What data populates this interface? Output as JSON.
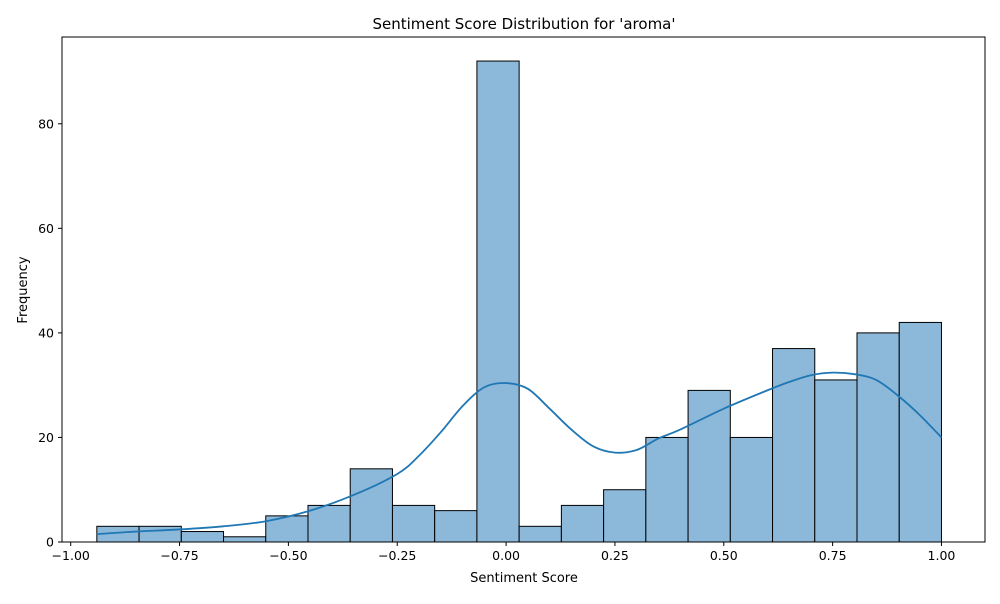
{
  "chart_data": {
    "type": "bar",
    "subtype": "histogram_with_kde",
    "title": "Sentiment Score Distribution for 'aroma'",
    "xlabel": "Sentiment Score",
    "ylabel": "Frequency",
    "xlim": [
      -1.02,
      1.1
    ],
    "ylim": [
      0,
      96.6
    ],
    "xticks": [
      -1.0,
      -0.75,
      -0.5,
      -0.25,
      0.0,
      0.25,
      0.5,
      0.75,
      1.0
    ],
    "xtick_labels": [
      "−1.00",
      "−0.75",
      "−0.50",
      "−0.25",
      "0.00",
      "0.25",
      "0.50",
      "0.75",
      "1.00"
    ],
    "yticks": [
      0,
      20,
      40,
      60,
      80
    ],
    "ytick_labels": [
      "0",
      "20",
      "40",
      "60",
      "80"
    ],
    "grid": false,
    "legend": "none",
    "bin_edges": [
      -0.94,
      -0.843,
      -0.746,
      -0.649,
      -0.552,
      -0.455,
      -0.358,
      -0.261,
      -0.164,
      -0.067,
      0.03,
      0.127,
      0.224,
      0.321,
      0.418,
      0.515,
      0.612,
      0.709,
      0.806,
      0.903,
      1.0
    ],
    "values": [
      3,
      3,
      2,
      1,
      5,
      7,
      14,
      7,
      6,
      92,
      3,
      7,
      10,
      20,
      29,
      20,
      37,
      31,
      40,
      42
    ],
    "kde": {
      "x": [
        -0.94,
        -0.85,
        -0.75,
        -0.65,
        -0.55,
        -0.45,
        -0.35,
        -0.25,
        -0.2,
        -0.15,
        -0.1,
        -0.05,
        0.0,
        0.05,
        0.1,
        0.15,
        0.2,
        0.25,
        0.3,
        0.35,
        0.4,
        0.5,
        0.6,
        0.65,
        0.7,
        0.75,
        0.8,
        0.85,
        0.9,
        0.95,
        1.0
      ],
      "y": [
        1.5,
        2.0,
        2.4,
        3.0,
        4.0,
        6.0,
        9.0,
        13.0,
        16.5,
        21.0,
        26.0,
        29.6,
        30.4,
        29.3,
        25.5,
        21.5,
        18.3,
        17.1,
        17.6,
        19.8,
        21.5,
        25.5,
        29.0,
        30.6,
        31.9,
        32.4,
        32.1,
        31.0,
        28.0,
        24.3,
        20.0
      ]
    },
    "colors": {
      "bar_fill": "#8cb8da",
      "bar_edge": "#000000",
      "kde_line": "#1f77b4"
    }
  }
}
